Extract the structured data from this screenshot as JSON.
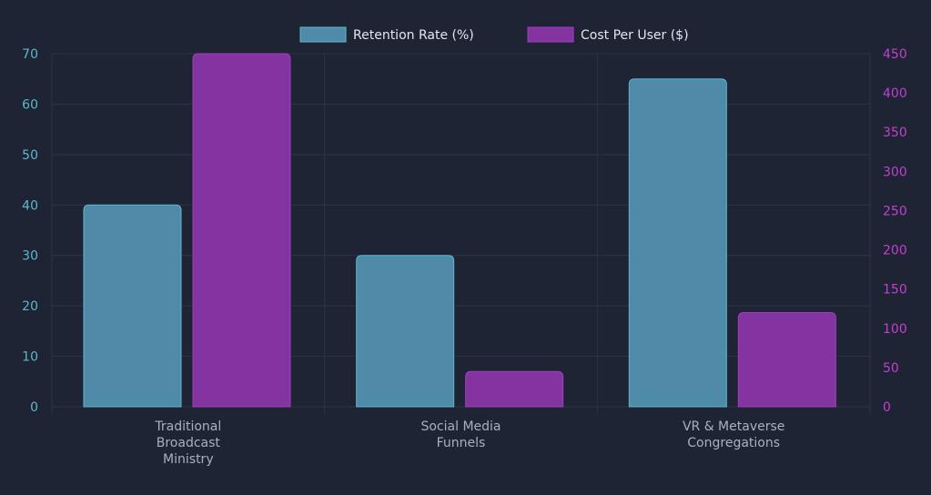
{
  "chart_data": {
    "type": "bar",
    "categories": [
      [
        "Traditional",
        "Broadcast",
        "Ministry"
      ],
      [
        "Social Media",
        "Funnels"
      ],
      [
        "VR & Metaverse",
        "Congregations"
      ]
    ],
    "series": [
      {
        "name": "Retention Rate (%)",
        "values": [
          40,
          30,
          65
        ],
        "axis": "left",
        "color": "#4f8ba8",
        "border": "#5bb8cc"
      },
      {
        "name": "Cost Per User ($)",
        "values": [
          450,
          45,
          120
        ],
        "axis": "right",
        "color": "#8434a0",
        "border": "#a43cc4"
      }
    ],
    "y_left": {
      "min": 0,
      "max": 70,
      "step": 10,
      "tick_color": "#5bb8cc"
    },
    "y_right": {
      "min": 0,
      "max": 450,
      "step": 50,
      "tick_color": "#c040d0"
    },
    "grid": true,
    "legend": "top-center"
  }
}
